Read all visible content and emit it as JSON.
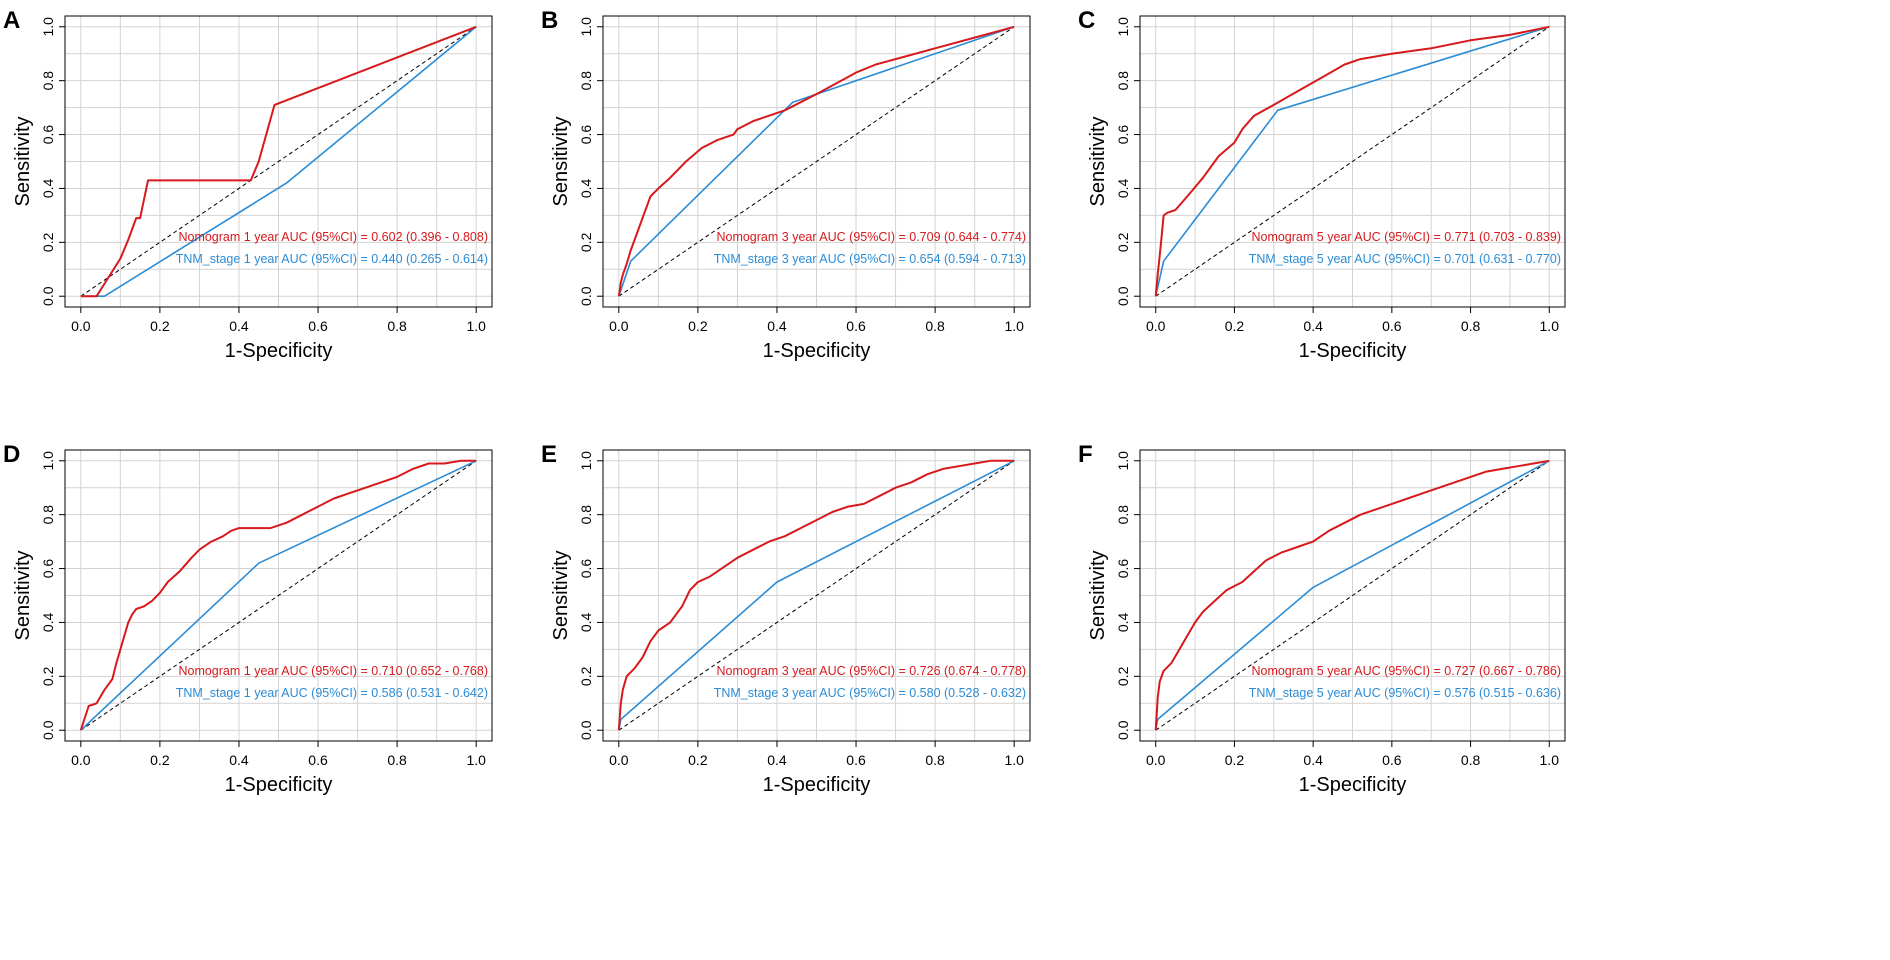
{
  "colors": {
    "nomogram": "#d7191c",
    "tnm": "#2b8cd6",
    "grid": "#d3d3d3",
    "axis": "#000000",
    "diagonal": "#000000"
  },
  "chart_data": [
    {
      "panel": "A",
      "type": "line",
      "xlabel": "1-Specificity",
      "ylabel": "Sensitivity",
      "xlim": [
        -0.04,
        1.04
      ],
      "ylim": [
        -0.04,
        1.04
      ],
      "xticks": [
        "0.0",
        "0.2",
        "0.4",
        "0.6",
        "0.8",
        "1.0"
      ],
      "yticks": [
        "0.0",
        "0.2",
        "0.4",
        "0.6",
        "0.8",
        "1.0"
      ],
      "grid": true,
      "legend_position": "bottom-right",
      "series": [
        {
          "name": "Nomogram 1 year AUC (95%CI) = 0.602 (0.396 - 0.808)",
          "color": "nomogram",
          "x": [
            0,
            0.04,
            0.07,
            0.1,
            0.12,
            0.14,
            0.15,
            0.17,
            0.43,
            0.45,
            0.49,
            1.0
          ],
          "y": [
            0,
            0,
            0.07,
            0.14,
            0.21,
            0.29,
            0.29,
            0.43,
            0.43,
            0.5,
            0.71,
            1.0
          ]
        },
        {
          "name": "TNM_stage 1 year AUC (95%CI) = 0.440 (0.265 - 0.614)",
          "color": "tnm",
          "x": [
            0,
            0.06,
            0.52,
            1.0
          ],
          "y": [
            0,
            0,
            0.42,
            1.0
          ]
        }
      ]
    },
    {
      "panel": "B",
      "type": "line",
      "xlabel": "1-Specificity",
      "ylabel": "Sensitivity",
      "xlim": [
        -0.04,
        1.04
      ],
      "ylim": [
        -0.04,
        1.04
      ],
      "xticks": [
        "0.0",
        "0.2",
        "0.4",
        "0.6",
        "0.8",
        "1.0"
      ],
      "yticks": [
        "0.0",
        "0.2",
        "0.4",
        "0.6",
        "0.8",
        "1.0"
      ],
      "grid": true,
      "legend_position": "bottom-right",
      "series": [
        {
          "name": "Nomogram 3 year AUC (95%CI) = 0.709 (0.644 - 0.774)",
          "color": "nomogram",
          "x": [
            0,
            0.005,
            0.01,
            0.02,
            0.03,
            0.05,
            0.06,
            0.07,
            0.08,
            0.1,
            0.13,
            0.17,
            0.21,
            0.25,
            0.29,
            0.3,
            0.34,
            0.38,
            0.42,
            0.46,
            0.5,
            0.55,
            0.6,
            0.65,
            0.7,
            0.8,
            0.9,
            1.0
          ],
          "y": [
            0,
            0.05,
            0.08,
            0.12,
            0.17,
            0.25,
            0.29,
            0.33,
            0.37,
            0.4,
            0.44,
            0.5,
            0.55,
            0.58,
            0.6,
            0.62,
            0.65,
            0.67,
            0.69,
            0.72,
            0.75,
            0.79,
            0.83,
            0.86,
            0.88,
            0.92,
            0.96,
            1.0
          ]
        },
        {
          "name": "TNM_stage 3 year AUC (95%CI) = 0.654 (0.594 - 0.713)",
          "color": "tnm",
          "x": [
            0,
            0.03,
            0.44,
            1.0
          ],
          "y": [
            0,
            0.13,
            0.72,
            1.0
          ]
        }
      ]
    },
    {
      "panel": "C",
      "type": "line",
      "xlabel": "1-Specificity",
      "ylabel": "Sensitivity",
      "xlim": [
        -0.04,
        1.04
      ],
      "ylim": [
        -0.04,
        1.04
      ],
      "xticks": [
        "0.0",
        "0.2",
        "0.4",
        "0.6",
        "0.8",
        "1.0"
      ],
      "yticks": [
        "0.0",
        "0.2",
        "0.4",
        "0.6",
        "0.8",
        "1.0"
      ],
      "grid": true,
      "legend_position": "bottom-right",
      "series": [
        {
          "name": "Nomogram 5 year AUC (95%CI) = 0.771 (0.703 - 0.839)",
          "color": "nomogram",
          "x": [
            0,
            0.005,
            0.01,
            0.015,
            0.02,
            0.03,
            0.05,
            0.08,
            0.12,
            0.16,
            0.2,
            0.22,
            0.25,
            0.3,
            0.36,
            0.42,
            0.48,
            0.52,
            0.6,
            0.7,
            0.8,
            0.9,
            1.0
          ],
          "y": [
            0,
            0.08,
            0.15,
            0.22,
            0.3,
            0.31,
            0.32,
            0.37,
            0.44,
            0.52,
            0.57,
            0.62,
            0.67,
            0.71,
            0.76,
            0.81,
            0.86,
            0.88,
            0.9,
            0.92,
            0.95,
            0.97,
            1.0
          ]
        },
        {
          "name": "TNM_stage 5 year AUC (95%CI) = 0.701 (0.631 - 0.770)",
          "color": "tnm",
          "x": [
            0,
            0.02,
            0.31,
            1.0
          ],
          "y": [
            0,
            0.13,
            0.69,
            1.0
          ]
        }
      ]
    },
    {
      "panel": "D",
      "type": "line",
      "xlabel": "1-Specificity",
      "ylabel": "Sensitivity",
      "xlim": [
        -0.04,
        1.04
      ],
      "ylim": [
        -0.04,
        1.04
      ],
      "xticks": [
        "0.0",
        "0.2",
        "0.4",
        "0.6",
        "0.8",
        "1.0"
      ],
      "yticks": [
        "0.0",
        "0.2",
        "0.4",
        "0.6",
        "0.8",
        "1.0"
      ],
      "grid": true,
      "legend_position": "bottom-right",
      "series": [
        {
          "name": "Nomogram 1 year AUC (95%CI) = 0.710 (0.652 - 0.768)",
          "color": "nomogram",
          "x": [
            0,
            0.02,
            0.04,
            0.06,
            0.08,
            0.09,
            0.1,
            0.11,
            0.12,
            0.13,
            0.14,
            0.16,
            0.18,
            0.2,
            0.22,
            0.25,
            0.28,
            0.3,
            0.33,
            0.36,
            0.38,
            0.4,
            0.44,
            0.48,
            0.52,
            0.56,
            0.6,
            0.64,
            0.68,
            0.72,
            0.76,
            0.8,
            0.84,
            0.88,
            0.92,
            0.96,
            1.0
          ],
          "y": [
            0,
            0.09,
            0.1,
            0.15,
            0.19,
            0.25,
            0.3,
            0.35,
            0.4,
            0.43,
            0.45,
            0.46,
            0.48,
            0.51,
            0.55,
            0.59,
            0.64,
            0.67,
            0.7,
            0.72,
            0.74,
            0.75,
            0.75,
            0.75,
            0.77,
            0.8,
            0.83,
            0.86,
            0.88,
            0.9,
            0.92,
            0.94,
            0.97,
            0.99,
            0.99,
            1.0,
            1.0
          ]
        },
        {
          "name": "TNM_stage 1 year AUC (95%CI) = 0.586 (0.531 - 0.642)",
          "color": "tnm",
          "x": [
            0,
            0.45,
            1.0
          ],
          "y": [
            0,
            0.62,
            1.0
          ]
        }
      ]
    },
    {
      "panel": "E",
      "type": "line",
      "xlabel": "1-Specificity",
      "ylabel": "Sensitivity",
      "xlim": [
        -0.04,
        1.04
      ],
      "ylim": [
        -0.04,
        1.04
      ],
      "xticks": [
        "0.0",
        "0.2",
        "0.4",
        "0.6",
        "0.8",
        "1.0"
      ],
      "yticks": [
        "0.0",
        "0.2",
        "0.4",
        "0.6",
        "0.8",
        "1.0"
      ],
      "grid": true,
      "legend_position": "bottom-right",
      "series": [
        {
          "name": "Nomogram 3 year AUC (95%CI) = 0.726 (0.674 - 0.778)",
          "color": "nomogram",
          "x": [
            0,
            0.005,
            0.01,
            0.02,
            0.04,
            0.06,
            0.08,
            0.1,
            0.13,
            0.16,
            0.18,
            0.2,
            0.23,
            0.26,
            0.3,
            0.34,
            0.38,
            0.42,
            0.46,
            0.5,
            0.54,
            0.58,
            0.62,
            0.66,
            0.7,
            0.74,
            0.78,
            0.82,
            0.86,
            0.9,
            0.94,
            0.97,
            1.0
          ],
          "y": [
            0,
            0.1,
            0.15,
            0.2,
            0.23,
            0.27,
            0.33,
            0.37,
            0.4,
            0.46,
            0.52,
            0.55,
            0.57,
            0.6,
            0.64,
            0.67,
            0.7,
            0.72,
            0.75,
            0.78,
            0.81,
            0.83,
            0.84,
            0.87,
            0.9,
            0.92,
            0.95,
            0.97,
            0.98,
            0.99,
            1.0,
            1.0,
            1.0
          ]
        },
        {
          "name": "TNM_stage 3 year AUC (95%CI) = 0.580 (0.528 - 0.632)",
          "color": "tnm",
          "x": [
            0,
            0.005,
            0.4,
            1.0
          ],
          "y": [
            0,
            0.04,
            0.55,
            1.0
          ]
        }
      ]
    },
    {
      "panel": "F",
      "type": "line",
      "xlabel": "1-Specificity",
      "ylabel": "Sensitivity",
      "xlim": [
        -0.04,
        1.04
      ],
      "ylim": [
        -0.04,
        1.04
      ],
      "xticks": [
        "0.0",
        "0.2",
        "0.4",
        "0.6",
        "0.8",
        "1.0"
      ],
      "yticks": [
        "0.0",
        "0.2",
        "0.4",
        "0.6",
        "0.8",
        "1.0"
      ],
      "grid": true,
      "legend_position": "bottom-right",
      "series": [
        {
          "name": "Nomogram 5 year AUC (95%CI) = 0.727 (0.667 - 0.786)",
          "color": "nomogram",
          "x": [
            0,
            0.005,
            0.01,
            0.02,
            0.04,
            0.06,
            0.08,
            0.1,
            0.12,
            0.15,
            0.18,
            0.22,
            0.25,
            0.28,
            0.32,
            0.36,
            0.4,
            0.44,
            0.48,
            0.52,
            0.56,
            0.6,
            0.64,
            0.68,
            0.72,
            0.76,
            0.8,
            0.84,
            0.88,
            0.92,
            0.96,
            1.0
          ],
          "y": [
            0,
            0.12,
            0.18,
            0.22,
            0.25,
            0.3,
            0.35,
            0.4,
            0.44,
            0.48,
            0.52,
            0.55,
            0.59,
            0.63,
            0.66,
            0.68,
            0.7,
            0.74,
            0.77,
            0.8,
            0.82,
            0.84,
            0.86,
            0.88,
            0.9,
            0.92,
            0.94,
            0.96,
            0.97,
            0.98,
            0.99,
            1.0
          ]
        },
        {
          "name": "TNM_stage 5 year AUC (95%CI) = 0.576 (0.515 - 0.636)",
          "color": "tnm",
          "x": [
            0,
            0.005,
            0.4,
            1.0
          ],
          "y": [
            0,
            0.04,
            0.53,
            1.0
          ]
        }
      ]
    }
  ]
}
